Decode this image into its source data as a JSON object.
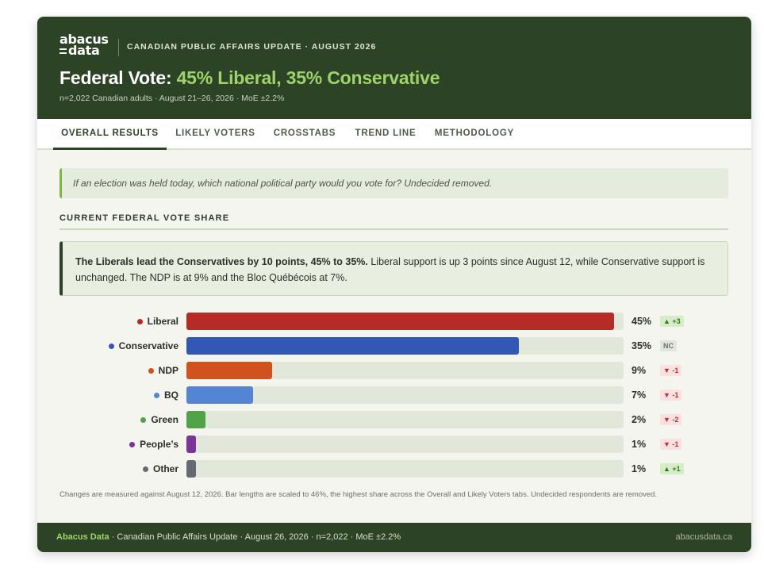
{
  "header": {
    "logo_line1": "abacus",
    "logo_line2": "data",
    "kicker": "CANADIAN PUBLIC AFFAIRS UPDATE · AUGUST 2026",
    "headline_prefix": "Federal Vote: ",
    "headline_accent": "45% Liberal, 35% Conservative",
    "subline": "n=2,022 Canadian adults · August 21–26, 2026 · MoE ±2.2%"
  },
  "tabs": [
    {
      "label": "OVERALL RESULTS",
      "active": true
    },
    {
      "label": "LIKELY VOTERS",
      "active": false
    },
    {
      "label": "CROSSTABS",
      "active": false
    },
    {
      "label": "TREND LINE",
      "active": false
    },
    {
      "label": "METHODOLOGY",
      "active": false
    }
  ],
  "question": "If an election was held today, which national political party would you vote for? Undecided removed.",
  "section_title": "CURRENT FEDERAL VOTE SHARE",
  "summary": {
    "lead": "The Liberals lead the Conservatives by 10 points, 45% to 35%.",
    "body": " Liberal support is up 3 points since August 12, while Conservative support is unchanged. The NDP is at 9% and the Bloc Québécois at 7%."
  },
  "chart_data": {
    "type": "bar",
    "orientation": "horizontal",
    "title": "CURRENT FEDERAL VOTE SHARE",
    "xlim": [
      0,
      46
    ],
    "categories": [
      "Liberal",
      "Conservative",
      "NDP",
      "BQ",
      "Green",
      "People’s",
      "Other"
    ],
    "values": [
      45,
      35,
      9,
      7,
      2,
      1,
      1
    ],
    "value_labels": [
      "45%",
      "35%",
      "9%",
      "7%",
      "2%",
      "1%",
      "1%"
    ],
    "changes": [
      {
        "label": "▲ +3",
        "dir": "up"
      },
      {
        "label": "NC",
        "dir": "nc"
      },
      {
        "label": "▼ -1",
        "dir": "down"
      },
      {
        "label": "▼ -1",
        "dir": "down"
      },
      {
        "label": "▼ -2",
        "dir": "down"
      },
      {
        "label": "▼ -1",
        "dir": "down"
      },
      {
        "label": "▲ +1",
        "dir": "up"
      }
    ],
    "colors": [
      "#b52b27",
      "#3158b5",
      "#d0531d",
      "#5485d5",
      "#52a24a",
      "#7a3597",
      "#646a70"
    ]
  },
  "footnote": "Changes are measured against August 12, 2026. Bar lengths are scaled to 46%, the highest share across the Overall and Likely Voters tabs. Undecided respondents are removed.",
  "footer": {
    "brand": "Abacus Data",
    "text": " · Canadian Public Affairs Update · August 26, 2026 · n=2,022 · MoE ±2.2%",
    "site": "abacusdata.ca"
  }
}
